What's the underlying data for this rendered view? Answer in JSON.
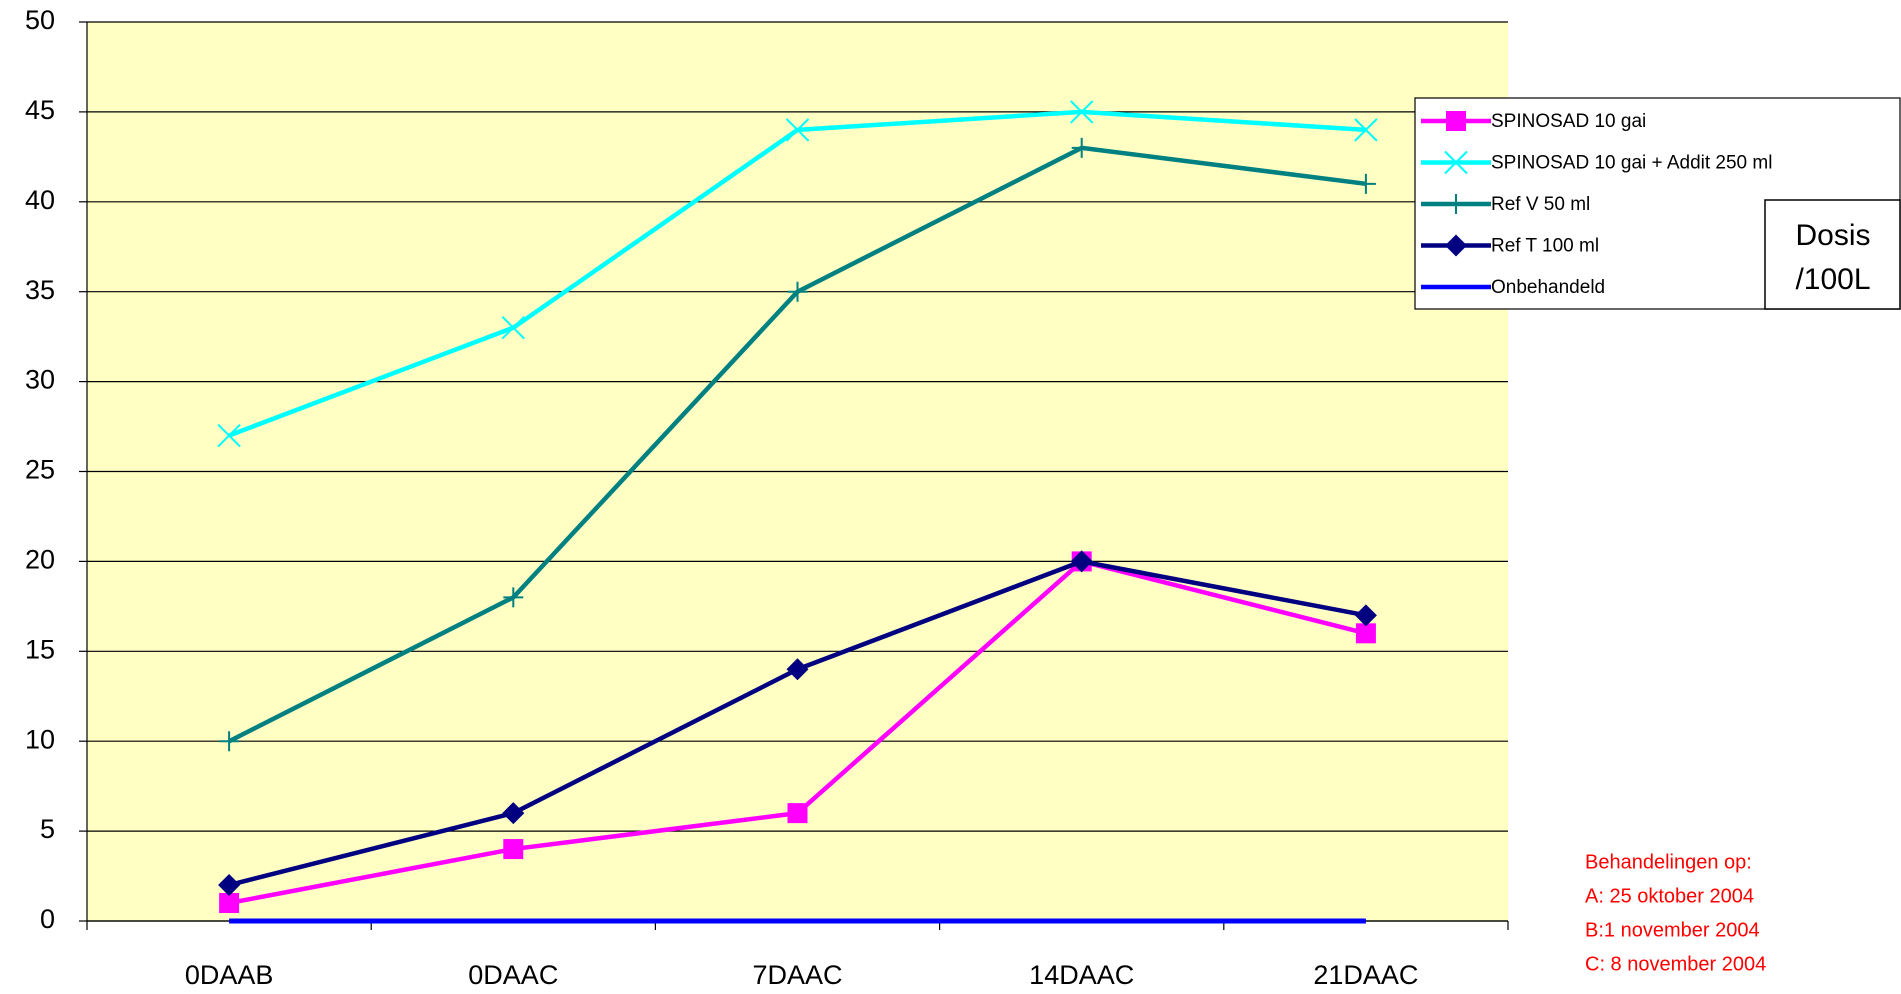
{
  "chart_data": {
    "type": "line",
    "categories": [
      "0DAAB",
      "0DAAC",
      "7DAAC",
      "14DAAC",
      "21DAAC"
    ],
    "series": [
      {
        "name": "SPINOSAD 10 gai",
        "color": "#ff00ff",
        "marker": "square",
        "values": [
          1,
          4,
          6,
          20,
          16
        ]
      },
      {
        "name": "SPINOSAD 10 gai + Addit 250 ml",
        "color": "#00ffff",
        "marker": "x",
        "values": [
          27,
          33,
          44,
          45,
          44
        ]
      },
      {
        "name": "Ref V 50 ml",
        "color": "#008080",
        "marker": "plus",
        "values": [
          10,
          18,
          35,
          43,
          41
        ]
      },
      {
        "name": "Ref T 100 ml",
        "color": "#000080",
        "marker": "diamond",
        "values": [
          2,
          6,
          14,
          20,
          17
        ]
      },
      {
        "name": "Onbehandeld",
        "color": "#0000ff",
        "marker": "none",
        "values": [
          0,
          0,
          0,
          0,
          0
        ]
      }
    ],
    "ylim": [
      0,
      50
    ],
    "yticks": [
      0,
      5,
      10,
      15,
      20,
      25,
      30,
      35,
      40,
      45,
      50
    ],
    "grid": true,
    "legend_title": [
      "Dosis",
      "/100L"
    ],
    "notes": [
      "Behandelingen op:",
      "A: 25 oktober 2004",
      "B:1 november 2004",
      "C: 8 november 2004"
    ]
  }
}
